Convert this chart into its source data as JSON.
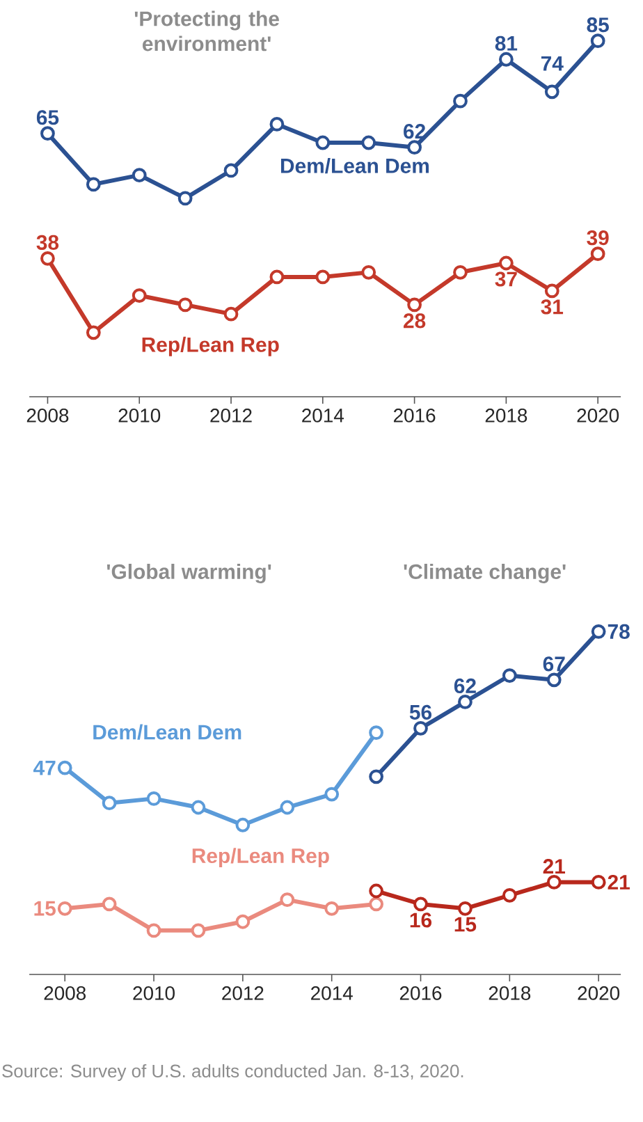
{
  "chart_data": [
    {
      "type": "line",
      "title": "'Protecting the environment'",
      "xlim": [
        2007.6,
        2020.5
      ],
      "xticks": [
        2008,
        2010,
        2012,
        2014,
        2016,
        2018,
        2020
      ],
      "tick_labels": "x",
      "marker": "circle",
      "line_style": "solid",
      "series": [
        {
          "name": "Dem/Lean Dem",
          "color": "#2b5192",
          "x": [
            2008,
            2009,
            2010,
            2011,
            2012,
            2013,
            2014,
            2015,
            2016,
            2017,
            2018,
            2019,
            2020
          ],
          "values": [
            65,
            54,
            56,
            51,
            57,
            67,
            63,
            63,
            62,
            72,
            81,
            74,
            85
          ],
          "value_labels": [
            "65",
            null,
            null,
            null,
            null,
            null,
            null,
            null,
            "62",
            null,
            "81",
            "74",
            "85"
          ]
        },
        {
          "name": "Rep/Lean Rep",
          "color": "#c4392a",
          "x": [
            2008,
            2009,
            2010,
            2011,
            2012,
            2013,
            2014,
            2015,
            2016,
            2017,
            2018,
            2019,
            2020
          ],
          "values": [
            38,
            22,
            30,
            28,
            26,
            34,
            34,
            35,
            28,
            35,
            37,
            31,
            39
          ],
          "value_labels": [
            "38",
            null,
            null,
            null,
            null,
            null,
            null,
            null,
            "28",
            null,
            "37",
            "31",
            "39"
          ]
        }
      ]
    },
    {
      "type": "line",
      "xlim": [
        2007.2,
        2020.5
      ],
      "xticks": [
        2008,
        2010,
        2012,
        2014,
        2016,
        2018,
        2020
      ],
      "tick_labels": "x",
      "marker": "circle",
      "line_style": "solid",
      "annotations": [
        "'Global warming'",
        "'Climate change'",
        "Source: Survey of U.S. adults conducted Jan. 8-13, 2020."
      ],
      "series": [
        {
          "name": "Dem/Lean Dem",
          "color": "#5b9bd9",
          "x": [
            2008,
            2009,
            2010,
            2011,
            2012,
            2013,
            2014,
            2015
          ],
          "values": [
            47,
            39,
            40,
            38,
            34,
            38,
            41,
            55
          ],
          "value_labels": [
            "47",
            null,
            null,
            null,
            null,
            null,
            null,
            null
          ]
        },
        {
          "color": "#2b5192",
          "x": [
            2015,
            2016,
            2017,
            2018,
            2019,
            2020
          ],
          "values": [
            45,
            56,
            62,
            68,
            67,
            78
          ],
          "value_labels": [
            null,
            "56",
            "62",
            null,
            "67",
            "78"
          ]
        },
        {
          "name": "Rep/Lean Rep",
          "color": "#ea8a7e",
          "x": [
            2008,
            2009,
            2010,
            2011,
            2012,
            2013,
            2014,
            2015
          ],
          "values": [
            15,
            16,
            10,
            10,
            12,
            17,
            15,
            16
          ],
          "value_labels": [
            "15",
            null,
            null,
            null,
            null,
            null,
            null,
            null
          ]
        },
        {
          "color": "#b8281c",
          "x": [
            2015,
            2016,
            2017,
            2018,
            2019,
            2020
          ],
          "values": [
            19,
            16,
            15,
            18,
            21,
            21
          ],
          "value_labels": [
            null,
            "16",
            "15",
            null,
            "21",
            "21"
          ]
        }
      ]
    }
  ]
}
